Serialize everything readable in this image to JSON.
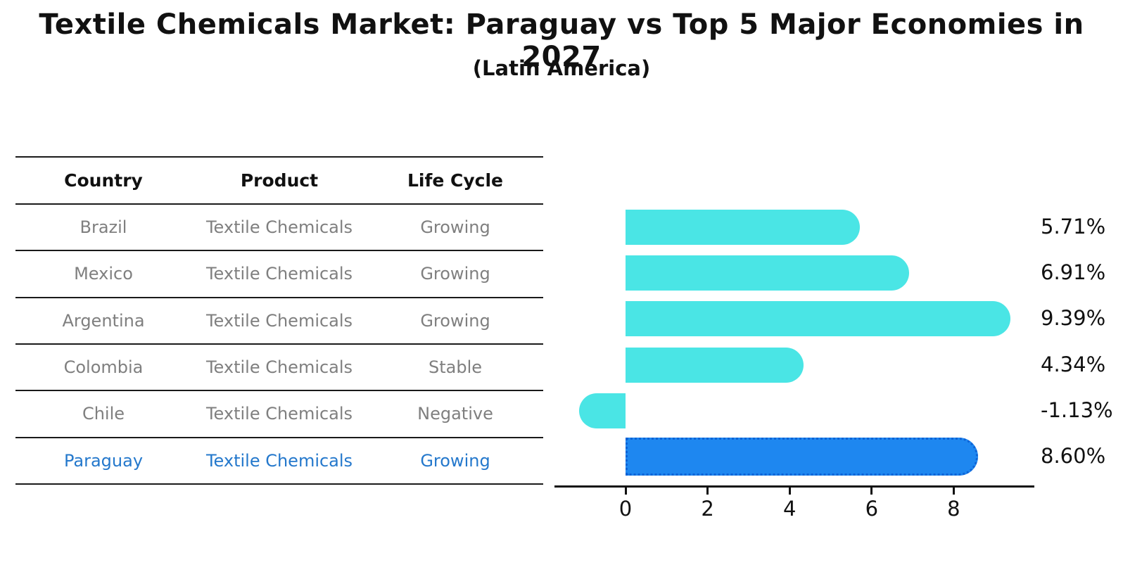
{
  "title": "Textile Chemicals Market: Paraguay vs Top 5 Major Economies in 2027",
  "subtitle": "(Latin America)",
  "table": {
    "headers": [
      "Country",
      "Product",
      "Life Cycle"
    ],
    "rows": [
      {
        "country": "Brazil",
        "product": "Textile Chemicals",
        "life_cycle": "Growing",
        "highlight": false
      },
      {
        "country": "Mexico",
        "product": "Textile Chemicals",
        "life_cycle": "Growing",
        "highlight": false
      },
      {
        "country": "Argentina",
        "product": "Textile Chemicals",
        "life_cycle": "Growing",
        "highlight": false
      },
      {
        "country": "Colombia",
        "product": "Textile Chemicals",
        "life_cycle": "Stable",
        "highlight": false
      },
      {
        "country": "Chile",
        "product": "Textile Chemicals",
        "life_cycle": "Negative",
        "highlight": false
      },
      {
        "country": "Paraguay",
        "product": "Textile Chemicals",
        "life_cycle": "Growing",
        "highlight": true
      }
    ]
  },
  "chart_data": {
    "type": "bar",
    "orientation": "horizontal",
    "title": "Textile Chemicals Market: Paraguay vs Top 5 Major Economies in 2027",
    "subtitle": "(Latin America)",
    "categories": [
      "Brazil",
      "Mexico",
      "Argentina",
      "Colombia",
      "Chile",
      "Paraguay"
    ],
    "values": [
      5.71,
      6.91,
      9.39,
      4.34,
      -1.13,
      8.6
    ],
    "value_labels": [
      "5.71%",
      "6.91%",
      "9.39%",
      "4.34%",
      "-1.13%",
      "8.60%"
    ],
    "x_ticks": [
      0,
      2,
      4,
      6,
      8
    ],
    "xlim": [
      -1.73,
      10.0
    ],
    "ylabel": "",
    "xlabel": "",
    "grid": false,
    "legend": false,
    "highlight_index": 5
  },
  "colors": {
    "bar": "#4ae5e5",
    "highlight_bar": "#1e87f0",
    "highlight_border": "#0e63d6",
    "table_text": "#7f7f7f",
    "highlight_text": "#2478cc",
    "axis": "#111111"
  }
}
